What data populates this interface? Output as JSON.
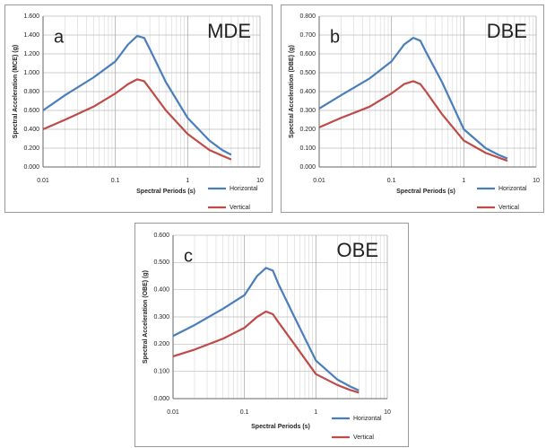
{
  "chart_data": [
    {
      "type": "line",
      "panel_label": "a",
      "title": "MDE",
      "x_label": "Spectral Periods (s)",
      "y_label": "Spectral Acceleration (MCE) (g)",
      "x": [
        0.01,
        0.02,
        0.05,
        0.1,
        0.15,
        0.2,
        0.25,
        0.3,
        0.5,
        1,
        2,
        3,
        4
      ],
      "series": [
        {
          "name": "Horizontal",
          "color": "#4a7ebb",
          "values": [
            0.6,
            0.76,
            0.95,
            1.12,
            1.3,
            1.39,
            1.37,
            1.25,
            0.9,
            0.52,
            0.28,
            0.18,
            0.13
          ]
        },
        {
          "name": "Vertical",
          "color": "#be4b48",
          "values": [
            0.4,
            0.5,
            0.64,
            0.78,
            0.88,
            0.93,
            0.91,
            0.83,
            0.6,
            0.35,
            0.18,
            0.12,
            0.08
          ]
        }
      ],
      "xlim": [
        0.01,
        10
      ],
      "xticks": [
        0.01,
        0.1,
        1,
        10
      ],
      "x_log": true,
      "minor_grid": true,
      "ylim": [
        0,
        1.6
      ],
      "yticks": [
        {
          "value": 0,
          "label": "0.000"
        },
        {
          "value": 0.2,
          "label": "0.200"
        },
        {
          "value": 0.4,
          "label": "0.400"
        },
        {
          "value": 0.6,
          "label": "0.600"
        },
        {
          "value": 0.8,
          "label": "0.800"
        },
        {
          "value": 1.0,
          "label": "1.000"
        },
        {
          "value": 1.2,
          "label": "1.200"
        },
        {
          "value": 1.4,
          "label": "1.400"
        },
        {
          "value": 1.6,
          "label": "1.600"
        }
      ],
      "grid": true,
      "legend": "lower right"
    },
    {
      "type": "line",
      "panel_label": "b",
      "title": "DBE",
      "x_label": "Spectral Periods (s)",
      "y_label": "Spectral Acceleration (DBE) (g)",
      "x": [
        0.01,
        0.02,
        0.05,
        0.1,
        0.15,
        0.2,
        0.25,
        0.3,
        0.5,
        1,
        2,
        3,
        4
      ],
      "series": [
        {
          "name": "Horizontal",
          "color": "#4a7ebb",
          "values": [
            0.31,
            0.38,
            0.47,
            0.56,
            0.65,
            0.685,
            0.67,
            0.61,
            0.45,
            0.2,
            0.1,
            0.065,
            0.045
          ]
        },
        {
          "name": "Vertical",
          "color": "#be4b48",
          "values": [
            0.21,
            0.26,
            0.32,
            0.39,
            0.44,
            0.455,
            0.44,
            0.4,
            0.28,
            0.14,
            0.075,
            0.05,
            0.033
          ]
        }
      ],
      "xlim": [
        0.01,
        10
      ],
      "xticks": [
        0.01,
        0.1,
        1,
        10
      ],
      "x_log": true,
      "minor_grid": true,
      "ylim": [
        0,
        0.8
      ],
      "yticks": [
        {
          "value": 0,
          "label": "0.000"
        },
        {
          "value": 0.1,
          "label": "0.100"
        },
        {
          "value": 0.2,
          "label": "0.200"
        },
        {
          "value": 0.3,
          "label": "0.300"
        },
        {
          "value": 0.4,
          "label": "0.400"
        },
        {
          "value": 0.5,
          "label": "0.500"
        },
        {
          "value": 0.6,
          "label": "0.600"
        },
        {
          "value": 0.7,
          "label": "0.700"
        },
        {
          "value": 0.8,
          "label": "0.800"
        }
      ],
      "grid": true,
      "legend": "lower right"
    },
    {
      "type": "line",
      "panel_label": "c",
      "title": "OBE",
      "x_label": "Spectral Periods (s)",
      "y_label": "Spectral Acceleration (OBE) (g)",
      "x": [
        0.01,
        0.02,
        0.05,
        0.1,
        0.15,
        0.2,
        0.25,
        0.3,
        0.5,
        1,
        2,
        3,
        4
      ],
      "series": [
        {
          "name": "Horizontal",
          "color": "#4a7ebb",
          "values": [
            0.23,
            0.27,
            0.33,
            0.38,
            0.45,
            0.48,
            0.47,
            0.42,
            0.3,
            0.14,
            0.07,
            0.045,
            0.03
          ]
        },
        {
          "name": "Vertical",
          "color": "#be4b48",
          "values": [
            0.155,
            0.18,
            0.22,
            0.26,
            0.3,
            0.32,
            0.31,
            0.28,
            0.2,
            0.09,
            0.05,
            0.032,
            0.022
          ]
        }
      ],
      "xlim": [
        0.01,
        10
      ],
      "xticks": [
        0.01,
        0.1,
        1,
        10
      ],
      "x_log": true,
      "minor_grid": true,
      "ylim": [
        0,
        0.6
      ],
      "yticks": [
        {
          "value": 0,
          "label": "0.000"
        },
        {
          "value": 0.1,
          "label": "0.100"
        },
        {
          "value": 0.2,
          "label": "0.200"
        },
        {
          "value": 0.3,
          "label": "0.300"
        },
        {
          "value": 0.4,
          "label": "0.400"
        },
        {
          "value": 0.5,
          "label": "0.500"
        },
        {
          "value": 0.6,
          "label": "0.600"
        }
      ],
      "grid": true,
      "legend": "lower right"
    }
  ]
}
